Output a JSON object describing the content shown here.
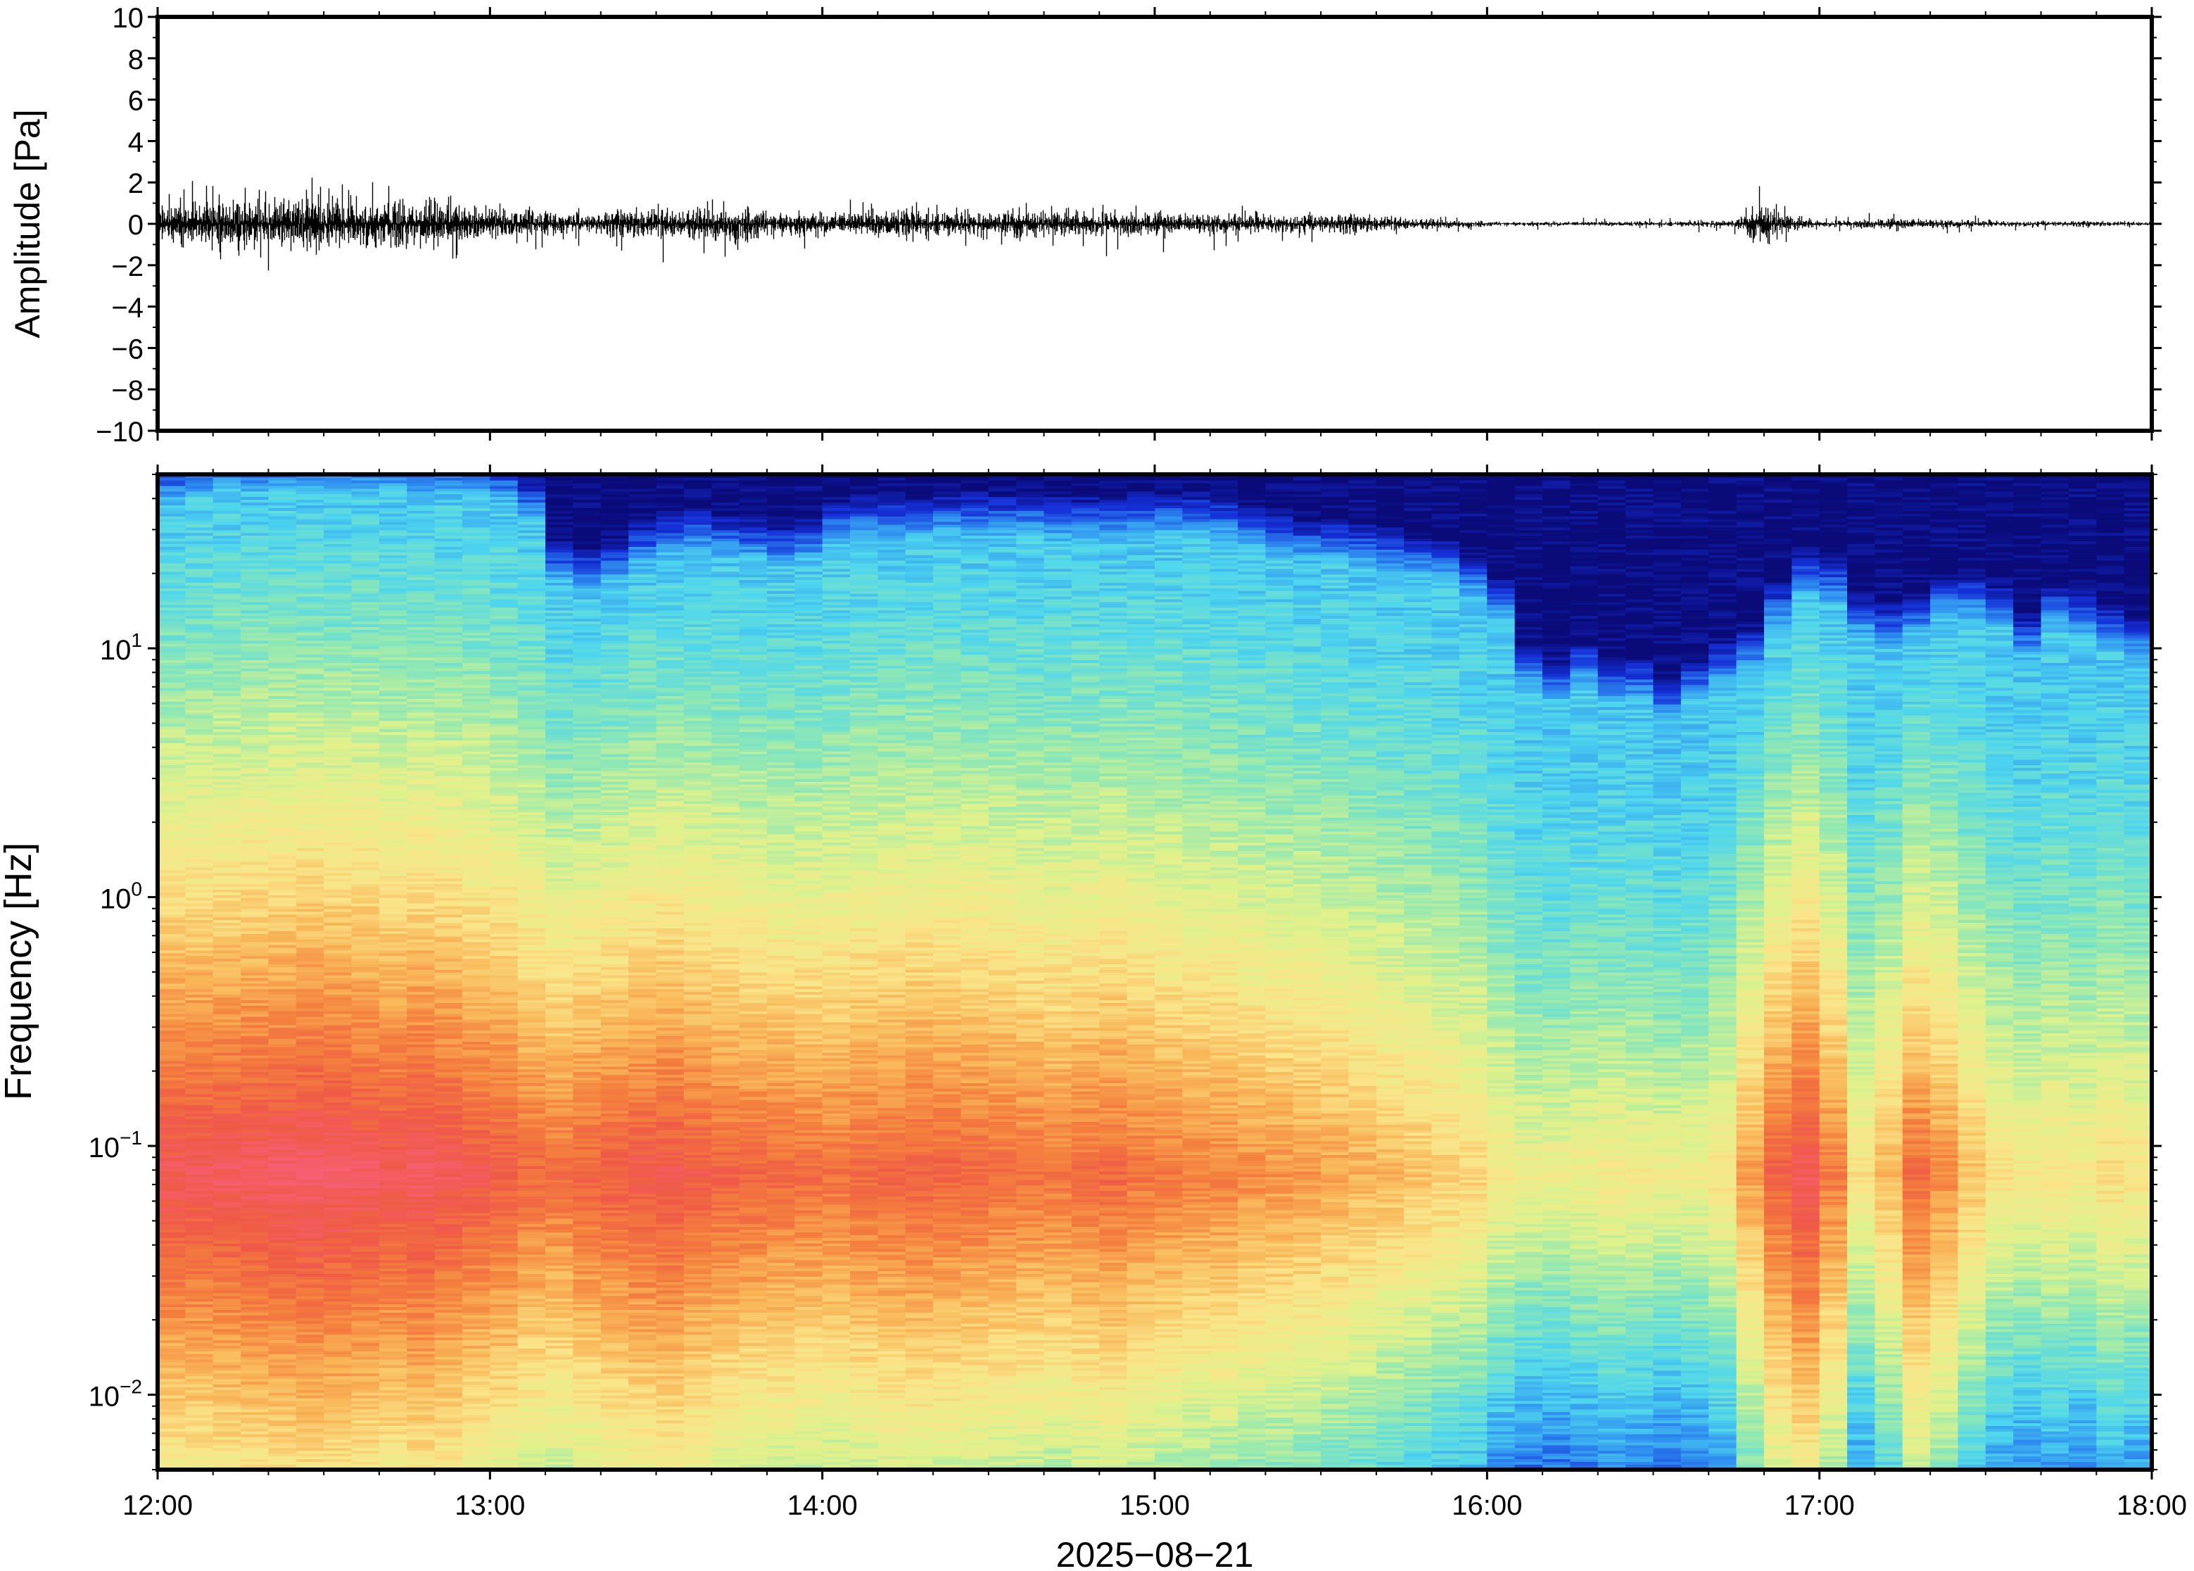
{
  "chart_data": [
    {
      "type": "line",
      "panel": "waveform",
      "ylabel": "Amplitude [Pa]",
      "ylim": [
        -10,
        10
      ],
      "yticks": [
        "10",
        "8",
        "6",
        "4",
        "2",
        "0",
        "−2",
        "−4",
        "−6",
        "−8",
        "−10"
      ],
      "ytick_values": [
        10,
        8,
        6,
        4,
        2,
        0,
        -2,
        -4,
        -6,
        -8,
        -10
      ],
      "xlim": [
        "12:00",
        "18:00"
      ],
      "envelope": {
        "time": [
          "12:00",
          "12:15",
          "12:30",
          "12:45",
          "13:00",
          "13:15",
          "13:30",
          "13:45",
          "14:00",
          "14:15",
          "14:30",
          "14:45",
          "15:00",
          "15:15",
          "15:30",
          "15:45",
          "16:00",
          "16:15",
          "16:30",
          "16:45",
          "16:50",
          "16:55",
          "17:00",
          "17:15",
          "17:30",
          "17:45",
          "18:00"
        ],
        "typical_amplitude_pa": [
          1.0,
          1.1,
          1.3,
          1.0,
          0.8,
          0.4,
          0.7,
          0.8,
          0.5,
          0.6,
          0.6,
          0.5,
          0.5,
          0.45,
          0.45,
          0.3,
          0.12,
          0.1,
          0.1,
          0.2,
          0.9,
          0.3,
          0.12,
          0.25,
          0.15,
          0.12,
          0.1
        ],
        "peak_positive_pa": [
          2.8,
          2.0,
          2.5,
          2.0,
          1.8,
          1.0,
          1.6,
          1.5,
          1.2,
          1.2,
          1.2,
          1.0,
          1.0,
          1.0,
          0.9,
          0.6,
          0.3,
          0.3,
          0.3,
          0.6,
          2.3,
          0.6,
          0.3,
          0.8,
          0.4,
          0.3,
          0.2
        ],
        "peak_negative_pa": [
          -2.3,
          -2.2,
          -2.9,
          -2.3,
          -1.6,
          -1.0,
          -2.4,
          -1.5,
          -1.2,
          -1.2,
          -1.2,
          -1.1,
          -2.3,
          -1.0,
          -0.9,
          -0.6,
          -0.3,
          -0.3,
          -0.3,
          -0.6,
          -2.2,
          -0.6,
          -0.3,
          -0.6,
          -0.4,
          -0.3,
          -0.2
        ]
      }
    },
    {
      "type": "heatmap",
      "panel": "spectrogram",
      "ylabel": "Frequency [Hz]",
      "yscale": "log",
      "ylim": [
        0.005,
        50
      ],
      "ytick_values": [
        0.01,
        0.1,
        1,
        10
      ],
      "yticks": [
        {
          "base": "10",
          "exp": "−2"
        },
        {
          "base": "10",
          "exp": "−1"
        },
        {
          "base": "10",
          "exp": "0"
        },
        {
          "base": "10",
          "exp": "1"
        }
      ],
      "xlabel": "2025−08−21",
      "xticks": [
        "12:00",
        "13:00",
        "14:00",
        "15:00",
        "16:00",
        "17:00",
        "18:00"
      ],
      "xlim": [
        "12:00",
        "18:00"
      ],
      "colormap": [
        "#0a0a78",
        "#1530d8",
        "#2f8ef0",
        "#4ed6ee",
        "#8fe8b4",
        "#dff28c",
        "#fae58a",
        "#f9b85a",
        "#f4803e",
        "#ef5a46",
        "#f85e72"
      ],
      "column_minutes": 5,
      "time_columns": [
        "12:00",
        "12:05",
        "12:10",
        "12:15",
        "12:20",
        "12:25",
        "12:30",
        "12:35",
        "12:40",
        "12:45",
        "12:50",
        "12:55",
        "13:00",
        "13:05",
        "13:10",
        "13:15",
        "13:20",
        "13:25",
        "13:30",
        "13:35",
        "13:40",
        "13:45",
        "13:50",
        "13:55",
        "14:00",
        "14:05",
        "14:10",
        "14:15",
        "14:20",
        "14:25",
        "14:30",
        "14:35",
        "14:40",
        "14:45",
        "14:50",
        "14:55",
        "15:00",
        "15:05",
        "15:10",
        "15:15",
        "15:20",
        "15:25",
        "15:30",
        "15:35",
        "15:40",
        "15:45",
        "15:50",
        "15:55",
        "16:00",
        "16:05",
        "16:10",
        "16:15",
        "16:20",
        "16:25",
        "16:30",
        "16:35",
        "16:40",
        "16:45",
        "16:50",
        "16:55",
        "17:00",
        "17:05",
        "17:10",
        "17:15",
        "17:20",
        "17:25",
        "17:30",
        "17:35",
        "17:40",
        "17:45",
        "17:50",
        "17:55"
      ],
      "upper_cutoff_hz": [
        38,
        40,
        42,
        42,
        43,
        43,
        43,
        43,
        42,
        41,
        41,
        40,
        38,
        32,
        18,
        17,
        18,
        21,
        23,
        24,
        23,
        22,
        21,
        22,
        26,
        27,
        27,
        27,
        28,
        28,
        28,
        28,
        27,
        27,
        27,
        28,
        28,
        28,
        27,
        25,
        23,
        22,
        22,
        21,
        20,
        19,
        18,
        16,
        13,
        7,
        6,
        7,
        6,
        6,
        5,
        6,
        7,
        8,
        12,
        16,
        15,
        11,
        10,
        11,
        13,
        13,
        12,
        9,
        12,
        11,
        10,
        9
      ],
      "peak_band_hz": [
        0.05,
        0.12
      ],
      "peak_band_intensity": [
        0.95,
        0.95,
        0.96,
        0.97,
        0.98,
        0.99,
        0.98,
        0.97,
        0.95,
        0.97,
        0.95,
        0.92,
        0.9,
        0.86,
        0.85,
        0.88,
        0.9,
        0.92,
        0.93,
        0.9,
        0.88,
        0.87,
        0.86,
        0.85,
        0.84,
        0.86,
        0.87,
        0.88,
        0.87,
        0.86,
        0.85,
        0.84,
        0.83,
        0.85,
        0.86,
        0.83,
        0.82,
        0.8,
        0.8,
        0.78,
        0.77,
        0.76,
        0.74,
        0.72,
        0.7,
        0.68,
        0.66,
        0.64,
        0.58,
        0.55,
        0.55,
        0.56,
        0.58,
        0.57,
        0.55,
        0.56,
        0.6,
        0.75,
        0.88,
        0.95,
        0.82,
        0.6,
        0.7,
        0.85,
        0.78,
        0.68,
        0.6,
        0.58,
        0.6,
        0.58,
        0.62,
        0.6
      ]
    }
  ]
}
